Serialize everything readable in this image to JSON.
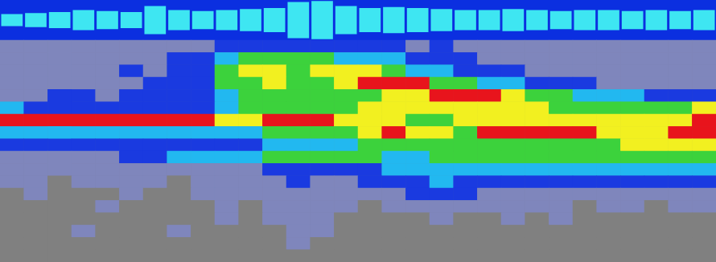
{
  "chart_data": [
    {
      "type": "envelope",
      "values": [
        0.3,
        0.35,
        0.4,
        0.5,
        0.45,
        0.4,
        0.7,
        0.5,
        0.45,
        0.5,
        0.55,
        0.6,
        0.9,
        0.95,
        0.7,
        0.6,
        0.65,
        0.6,
        0.55,
        0.5,
        0.5,
        0.55,
        0.5,
        0.45,
        0.5,
        0.5,
        0.45,
        0.5,
        0.45,
        0.5
      ],
      "ylim": [
        -1,
        1
      ],
      "color": "#3ee6f2",
      "tick_labels": false
    },
    {
      "type": "heatmap",
      "value_range": [
        0,
        6
      ],
      "tick_labels": false,
      "cells": [
        [
          1,
          1,
          1,
          1,
          1,
          1,
          1,
          1,
          1,
          2,
          2,
          2,
          2,
          2,
          2,
          2,
          2,
          1,
          2,
          1,
          1,
          1,
          1,
          1,
          1,
          1,
          1,
          1,
          1,
          1
        ],
        [
          1,
          1,
          1,
          1,
          1,
          1,
          1,
          2,
          2,
          3,
          4,
          4,
          4,
          4,
          3,
          3,
          3,
          2,
          2,
          2,
          1,
          1,
          1,
          1,
          1,
          1,
          1,
          1,
          1,
          1
        ],
        [
          1,
          1,
          1,
          1,
          1,
          2,
          1,
          2,
          2,
          4,
          5,
          5,
          4,
          5,
          5,
          5,
          4,
          3,
          3,
          2,
          2,
          2,
          1,
          1,
          1,
          1,
          1,
          1,
          1,
          1
        ],
        [
          1,
          1,
          1,
          1,
          1,
          1,
          2,
          2,
          2,
          4,
          4,
          5,
          4,
          4,
          5,
          6,
          6,
          6,
          4,
          4,
          3,
          3,
          2,
          2,
          2,
          1,
          1,
          1,
          1,
          1
        ],
        [
          1,
          1,
          2,
          2,
          1,
          2,
          2,
          2,
          2,
          3,
          4,
          4,
          4,
          4,
          4,
          4,
          5,
          5,
          6,
          6,
          6,
          5,
          4,
          4,
          3,
          3,
          3,
          2,
          2,
          2
        ],
        [
          3,
          2,
          2,
          2,
          2,
          2,
          2,
          2,
          2,
          3,
          4,
          4,
          4,
          4,
          4,
          5,
          5,
          5,
          5,
          5,
          5,
          5,
          5,
          4,
          4,
          4,
          4,
          4,
          4,
          5
        ],
        [
          6,
          6,
          6,
          6,
          6,
          6,
          6,
          6,
          6,
          5,
          5,
          6,
          6,
          6,
          5,
          5,
          5,
          4,
          4,
          5,
          5,
          5,
          5,
          5,
          5,
          5,
          5,
          5,
          5,
          6
        ],
        [
          3,
          3,
          3,
          3,
          3,
          3,
          3,
          3,
          3,
          3,
          3,
          4,
          4,
          4,
          4,
          5,
          6,
          5,
          5,
          4,
          6,
          6,
          6,
          6,
          6,
          5,
          5,
          5,
          6,
          6
        ],
        [
          2,
          2,
          2,
          2,
          2,
          2,
          2,
          2,
          2,
          2,
          2,
          3,
          3,
          3,
          3,
          4,
          4,
          4,
          4,
          4,
          4,
          4,
          4,
          4,
          4,
          4,
          5,
          5,
          5,
          5
        ],
        [
          1,
          1,
          1,
          1,
          1,
          2,
          2,
          3,
          3,
          3,
          3,
          4,
          4,
          4,
          4,
          4,
          3,
          3,
          4,
          4,
          4,
          4,
          4,
          4,
          4,
          4,
          4,
          4,
          4,
          4
        ],
        [
          1,
          1,
          1,
          1,
          1,
          1,
          1,
          1,
          1,
          1,
          1,
          2,
          2,
          2,
          2,
          2,
          3,
          3,
          3,
          3,
          3,
          3,
          3,
          3,
          3,
          3,
          3,
          3,
          3,
          3
        ],
        [
          1,
          1,
          0,
          1,
          1,
          1,
          1,
          0,
          1,
          1,
          1,
          1,
          2,
          1,
          1,
          2,
          2,
          2,
          3,
          2,
          2,
          2,
          2,
          2,
          2,
          2,
          2,
          2,
          2,
          2
        ],
        [
          0,
          1,
          0,
          0,
          0,
          1,
          0,
          0,
          1,
          1,
          1,
          1,
          1,
          1,
          1,
          1,
          1,
          2,
          2,
          2,
          1,
          1,
          1,
          1,
          1,
          1,
          1,
          1,
          1,
          1
        ],
        [
          0,
          0,
          0,
          0,
          1,
          0,
          0,
          0,
          0,
          1,
          0,
          1,
          1,
          1,
          1,
          0,
          1,
          1,
          1,
          1,
          1,
          1,
          1,
          1,
          0,
          1,
          1,
          0,
          1,
          1
        ],
        [
          0,
          0,
          0,
          0,
          0,
          0,
          0,
          0,
          0,
          1,
          0,
          1,
          1,
          1,
          0,
          0,
          0,
          0,
          1,
          0,
          0,
          1,
          0,
          1,
          0,
          0,
          0,
          0,
          0,
          0
        ],
        [
          0,
          0,
          0,
          1,
          0,
          0,
          0,
          1,
          0,
          0,
          0,
          0,
          1,
          1,
          0,
          0,
          0,
          0,
          0,
          0,
          0,
          0,
          0,
          0,
          0,
          0,
          0,
          0,
          0,
          0
        ],
        [
          0,
          0,
          0,
          0,
          0,
          0,
          0,
          0,
          0,
          0,
          0,
          0,
          1,
          0,
          0,
          0,
          0,
          0,
          0,
          0,
          0,
          0,
          0,
          0,
          0,
          0,
          0,
          0,
          0,
          0
        ],
        [
          0,
          0,
          0,
          0,
          0,
          0,
          0,
          0,
          0,
          0,
          0,
          0,
          0,
          0,
          0,
          0,
          0,
          0,
          0,
          0,
          0,
          0,
          0,
          0,
          0,
          0,
          0,
          0,
          0,
          0
        ]
      ]
    }
  ]
}
